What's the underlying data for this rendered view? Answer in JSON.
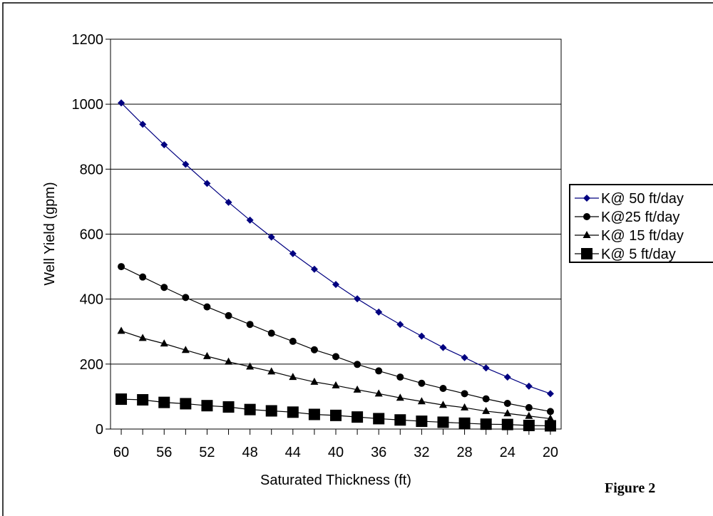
{
  "figure_label": "Figure 2",
  "colors": {
    "k50": "#000080",
    "k25": "#000000",
    "k15": "#000000",
    "k5": "#000000",
    "grid": "#000000",
    "frame": "#000000"
  },
  "chart_data": {
    "type": "line",
    "title": "",
    "xlabel": "Saturated Thickness (ft)",
    "ylabel": "Well Yield (gpm)",
    "x_reversed": true,
    "xlim": [
      61,
      19
    ],
    "ylim": [
      0,
      1200
    ],
    "yticks": [
      0,
      200,
      400,
      600,
      800,
      1000,
      1200
    ],
    "xtick_labels": [
      "60",
      "56",
      "52",
      "48",
      "44",
      "40",
      "36",
      "32",
      "28",
      "24",
      "20"
    ],
    "grid": "horizontal",
    "legend_position": "right",
    "x": [
      60,
      58,
      56,
      54,
      52,
      50,
      48,
      46,
      44,
      42,
      40,
      38,
      36,
      34,
      32,
      30,
      28,
      26,
      24,
      22,
      20
    ],
    "series": [
      {
        "name": "K@ 50 ft/day",
        "marker": "diamond",
        "color": "#000080",
        "values": [
          1004,
          938,
          875,
          815,
          756,
          698,
          643,
          591,
          540,
          492,
          445,
          401,
          360,
          322,
          286,
          251,
          220,
          188,
          160,
          132,
          109
        ]
      },
      {
        "name": "K@25 ft/day",
        "marker": "circle",
        "color": "#000000",
        "values": [
          500,
          468,
          436,
          405,
          376,
          349,
          322,
          295,
          270,
          244,
          223,
          199,
          179,
          160,
          141,
          125,
          109,
          93,
          79,
          66,
          54
        ]
      },
      {
        "name": "K@ 15 ft/day",
        "marker": "triangle",
        "color": "#000000",
        "values": [
          302,
          280,
          263,
          243,
          224,
          207,
          192,
          177,
          160,
          145,
          134,
          121,
          109,
          96,
          85,
          74,
          66,
          55,
          48,
          40,
          32
        ]
      },
      {
        "name": "K@ 5 ft/day",
        "marker": "square",
        "color": "#000000",
        "values": [
          92,
          90,
          82,
          78,
          72,
          68,
          60,
          56,
          52,
          45,
          42,
          37,
          32,
          28,
          24,
          21,
          18,
          15,
          14,
          11,
          10
        ]
      }
    ]
  }
}
